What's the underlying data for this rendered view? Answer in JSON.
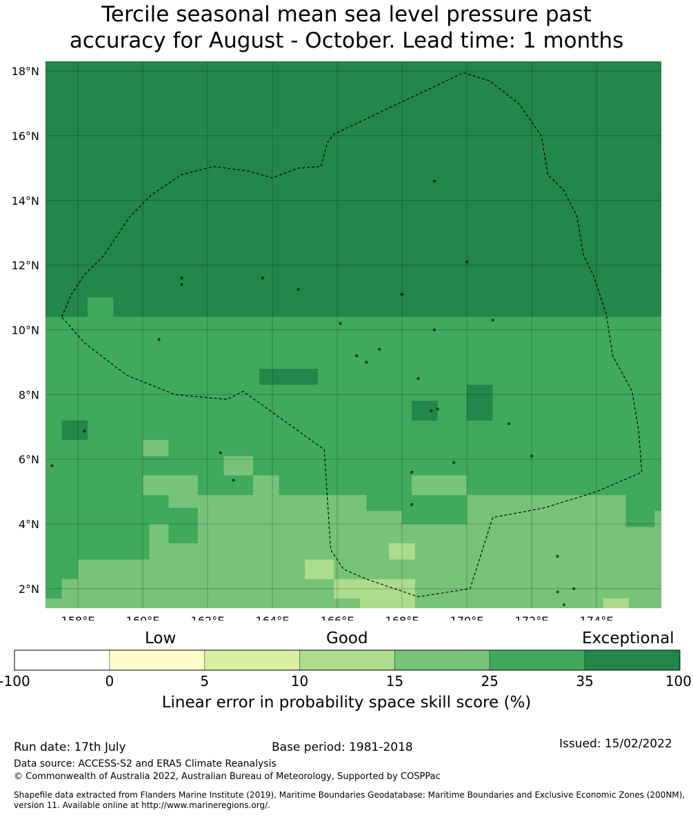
{
  "title": {
    "line1": "Tercile seasonal mean sea level pressure past",
    "line2": "accuracy for August - October. Lead time: 1 months"
  },
  "map": {
    "lat_range": [
      1.4,
      18.3
    ],
    "lon_range": [
      157.0,
      176.0
    ],
    "lat_labels": [
      "18°N",
      "16°N",
      "14°N",
      "12°N",
      "10°N",
      "8°N",
      "6°N",
      "4°N",
      "2°N"
    ],
    "lon_labels": [
      "158°E",
      "160°E",
      "162°E",
      "164°E",
      "166°E",
      "168°E",
      "170°E",
      "172°E",
      "174°E"
    ],
    "lat_ticks": [
      18,
      16,
      14,
      12,
      10,
      8,
      6,
      4,
      2
    ],
    "lon_ticks": [
      158,
      160,
      162,
      164,
      166,
      168,
      170,
      172,
      174
    ],
    "cell_size_deg": 0.833,
    "bin_colors": {
      "0-5": "#fffdc8",
      "5-10": "#d9eea0",
      "10-15": "#acdc8c",
      "15-25": "#77c379",
      "25-35": "#3fa95c",
      "35-100": "#23864a"
    },
    "skill_regions": [
      {
        "bin": "35-100",
        "lon": [
          157.0,
          176.0
        ],
        "lat": [
          10.4,
          18.3
        ]
      },
      {
        "bin": "35-100",
        "lon": [
          161.2,
          176.0
        ],
        "lat": [
          9.0,
          10.4
        ]
      },
      {
        "bin": "35-100",
        "lon": [
          165.0,
          170.5
        ],
        "lat": [
          7.8,
          9.0
        ]
      },
      {
        "bin": "35-100",
        "lon": [
          172.5,
          176.0
        ],
        "lat": [
          8.3,
          9.0
        ]
      },
      {
        "bin": "25-35",
        "lon": [
          157.0,
          176.0
        ],
        "lat": [
          4.9,
          10.4
        ]
      },
      {
        "bin": "25-35",
        "lon": [
          158.3,
          159.1
        ],
        "lat": [
          10.4,
          11.0
        ]
      },
      {
        "bin": "25-35",
        "lon": [
          162.6,
          163.5
        ],
        "lat": [
          9.0,
          10.0
        ]
      },
      {
        "bin": "25-35",
        "lon": [
          166.8,
          172.5
        ],
        "lat": [
          8.5,
          9.0
        ]
      },
      {
        "bin": "25-35",
        "lon": [
          172.5,
          174.3
        ],
        "lat": [
          8.7,
          9.0
        ]
      },
      {
        "bin": "35-100",
        "lon": [
          163.6,
          165.4
        ],
        "lat": [
          8.3,
          8.8
        ]
      },
      {
        "bin": "35-100",
        "lon": [
          168.3,
          169.1
        ],
        "lat": [
          7.2,
          7.8
        ]
      },
      {
        "bin": "35-100",
        "lon": [
          170.0,
          170.8
        ],
        "lat": [
          7.2,
          8.3
        ]
      },
      {
        "bin": "35-100",
        "lon": [
          157.5,
          158.3
        ],
        "lat": [
          6.6,
          7.2
        ]
      },
      {
        "bin": "15-25",
        "lon": [
          157.0,
          176.0
        ],
        "lat": [
          1.4,
          4.9
        ]
      },
      {
        "bin": "25-35",
        "lon": [
          157.0,
          160.2
        ],
        "lat": [
          2.9,
          4.9
        ]
      },
      {
        "bin": "25-35",
        "lon": [
          157.0,
          158.0
        ],
        "lat": [
          2.3,
          2.9
        ]
      },
      {
        "bin": "25-35",
        "lon": [
          157.0,
          157.5
        ],
        "lat": [
          1.7,
          2.3
        ]
      },
      {
        "bin": "25-35",
        "lon": [
          160.0,
          160.8
        ],
        "lat": [
          4.0,
          4.9
        ]
      },
      {
        "bin": "25-35",
        "lon": [
          160.0,
          161.7
        ],
        "lat": [
          4.0,
          4.5
        ]
      },
      {
        "bin": "25-35",
        "lon": [
          160.8,
          161.7
        ],
        "lat": [
          3.4,
          4.5
        ]
      },
      {
        "bin": "25-35",
        "lon": [
          168.0,
          170.0
        ],
        "lat": [
          4.0,
          4.9
        ]
      },
      {
        "bin": "25-35",
        "lon": [
          166.9,
          168.0
        ],
        "lat": [
          4.4,
          4.9
        ]
      },
      {
        "bin": "25-35",
        "lon": [
          174.9,
          175.8
        ],
        "lat": [
          3.9,
          4.9
        ]
      },
      {
        "bin": "25-35",
        "lon": [
          175.8,
          176.0
        ],
        "lat": [
          4.4,
          4.9
        ]
      },
      {
        "bin": "15-25",
        "lon": [
          160.0,
          161.7
        ],
        "lat": [
          4.9,
          5.5
        ]
      },
      {
        "bin": "15-25",
        "lon": [
          163.4,
          164.2
        ],
        "lat": [
          4.9,
          5.5
        ]
      },
      {
        "bin": "15-25",
        "lon": [
          168.3,
          170.0
        ],
        "lat": [
          4.9,
          5.5
        ]
      },
      {
        "bin": "15-25",
        "lon": [
          160.0,
          160.8
        ],
        "lat": [
          6.1,
          6.6
        ]
      },
      {
        "bin": "15-25",
        "lon": [
          162.5,
          163.4
        ],
        "lat": [
          5.5,
          6.1
        ]
      },
      {
        "bin": "10-15",
        "lon": [
          165.0,
          165.9
        ],
        "lat": [
          2.3,
          2.9
        ]
      },
      {
        "bin": "10-15",
        "lon": [
          165.9,
          166.7
        ],
        "lat": [
          1.7,
          2.3
        ]
      },
      {
        "bin": "10-15",
        "lon": [
          166.7,
          168.4
        ],
        "lat": [
          1.4,
          2.3
        ]
      },
      {
        "bin": "10-15",
        "lon": [
          167.6,
          168.4
        ],
        "lat": [
          2.9,
          3.4
        ]
      },
      {
        "bin": "10-15",
        "lon": [
          174.2,
          175.0
        ],
        "lat": [
          1.4,
          1.7
        ]
      }
    ],
    "eez_boundary": [
      [
        157.5,
        10.4
      ],
      [
        157.8,
        11.1
      ],
      [
        158.2,
        11.7
      ],
      [
        158.8,
        12.3
      ],
      [
        159.0,
        12.6
      ],
      [
        159.6,
        13.5
      ],
      [
        160.3,
        14.2
      ],
      [
        161.2,
        14.8
      ],
      [
        162.2,
        15.05
      ],
      [
        163.3,
        14.9
      ],
      [
        164.0,
        14.7
      ],
      [
        164.8,
        15.0
      ],
      [
        165.5,
        15.05
      ],
      [
        165.7,
        15.8
      ],
      [
        165.9,
        16.05
      ],
      [
        168.0,
        17.05
      ],
      [
        169.9,
        17.95
      ],
      [
        170.7,
        17.7
      ],
      [
        171.6,
        17.0
      ],
      [
        172.3,
        16.0
      ],
      [
        172.5,
        14.8
      ],
      [
        173.0,
        14.3
      ],
      [
        173.4,
        13.5
      ],
      [
        173.6,
        12.3
      ],
      [
        173.9,
        11.7
      ],
      [
        174.3,
        10.5
      ],
      [
        174.5,
        9.2
      ],
      [
        175.1,
        8.1
      ],
      [
        175.3,
        6.9
      ],
      [
        175.4,
        5.6
      ],
      [
        174.0,
        5.0
      ],
      [
        172.4,
        4.5
      ],
      [
        170.8,
        4.2
      ],
      [
        170.1,
        2.0
      ],
      [
        168.5,
        1.75
      ],
      [
        166.9,
        2.3
      ],
      [
        166.2,
        2.6
      ],
      [
        165.8,
        3.2
      ],
      [
        165.6,
        6.3
      ],
      [
        163.1,
        8.1
      ],
      [
        162.6,
        7.85
      ],
      [
        161.0,
        8.0
      ],
      [
        159.5,
        8.6
      ],
      [
        158.2,
        9.6
      ],
      [
        157.5,
        10.4
      ]
    ],
    "islands": [
      [
        158.2,
        6.87
      ],
      [
        161.2,
        11.6
      ],
      [
        161.2,
        11.4
      ],
      [
        163.7,
        11.6
      ],
      [
        164.8,
        11.25
      ],
      [
        166.1,
        10.2
      ],
      [
        167.3,
        9.4
      ],
      [
        169.0,
        10.0
      ],
      [
        170.8,
        10.3
      ],
      [
        166.6,
        9.2
      ],
      [
        166.9,
        9.0
      ],
      [
        168.5,
        8.5
      ],
      [
        168.9,
        7.5
      ],
      [
        169.1,
        7.55
      ],
      [
        171.3,
        7.1
      ],
      [
        172.0,
        6.1
      ],
      [
        168.3,
        5.6
      ],
      [
        169.6,
        5.9
      ],
      [
        168.3,
        4.6
      ],
      [
        162.8,
        5.35
      ],
      [
        157.2,
        5.8
      ],
      [
        162.4,
        6.2
      ],
      [
        160.5,
        9.7
      ],
      [
        169.0,
        14.6
      ],
      [
        168.0,
        11.1
      ],
      [
        170.0,
        12.1
      ],
      [
        172.8,
        3.0
      ],
      [
        172.8,
        1.9
      ],
      [
        173.3,
        2.0
      ],
      [
        173.0,
        1.5
      ]
    ]
  },
  "colorbar": {
    "categories": {
      "low": "Low",
      "good": "Good",
      "exceptional": "Exceptional"
    },
    "bounds": [
      "-100",
      "0",
      "5",
      "10",
      "15",
      "25",
      "35",
      "100"
    ],
    "colors": [
      "#ffffff",
      "#fffdc8",
      "#d9eea0",
      "#acdc8c",
      "#77c379",
      "#3fa95c",
      "#23864a"
    ],
    "label": "Linear error in probability space skill score (%)"
  },
  "footer": {
    "run_date": "Run date: 17th July",
    "base_period": "Base period: 1981-2018",
    "issued": "Issued: 15/02/2022",
    "data_source": "Data source: ACCESS-S2 and ERA5 Climate Reanalysis",
    "copyright": "© Commonwealth of Australia 2022, Australian Bureau of Meteorology, Supported by COSPPac",
    "shapefile": "Shapefile data extracted from Flanders Marine Institute (2019), Maritime Boundaries Geodatabase: Maritime Boundaries and Exclusive Economic Zones (200NM), version 11. Available online at http://www.marineregions.org/."
  }
}
